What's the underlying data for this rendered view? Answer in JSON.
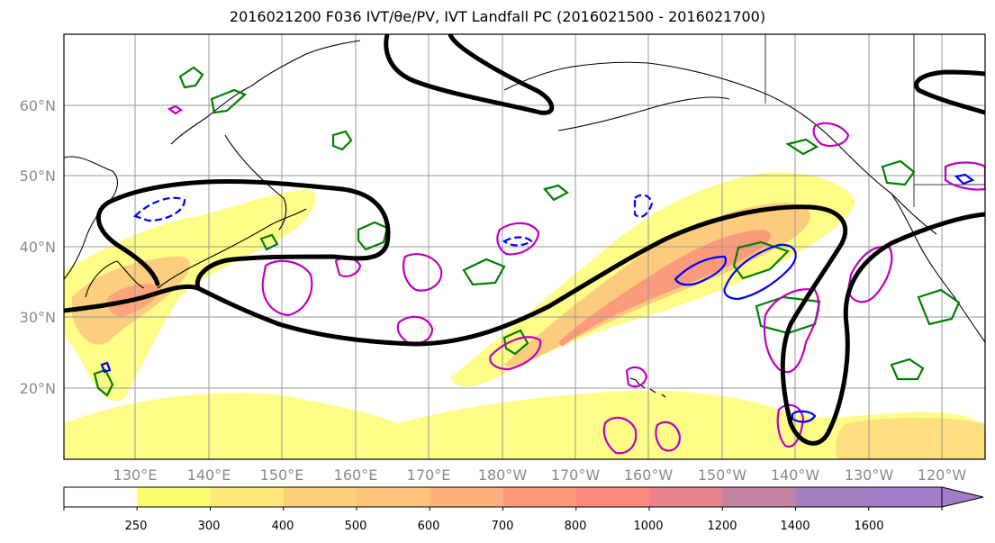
{
  "title": "2016021200 F036 IVT/θe/PV, IVT Landfall PC (2016021500 - 2016021700)",
  "map": {
    "lat_labels": [
      "60°N",
      "50°N",
      "40°N",
      "30°N",
      "20°N"
    ],
    "lon_labels": [
      "130°E",
      "140°E",
      "150°E",
      "160°E",
      "170°E",
      "180°W",
      "170°W",
      "160°W",
      "150°W",
      "140°W",
      "130°W",
      "120°W"
    ],
    "colors": {
      "pv_contour": "#000000",
      "theta_e_green": "#008000",
      "positive_magenta": "#c000c0",
      "negative_blue": "#0000ff",
      "coastline": "#000000",
      "grid": "#999999"
    }
  },
  "colorbar": {
    "levels": [
      "250",
      "300",
      "400",
      "500",
      "600",
      "700",
      "800",
      "1000",
      "1200",
      "1400",
      "1600"
    ],
    "colors": [
      "#ffffff",
      "#fdfd72",
      "#fde87a",
      "#fdd07c",
      "#fdc27c",
      "#fdb07c",
      "#fd9a7c",
      "#fb8a7c",
      "#e8828c",
      "#c583a4",
      "#a280c0",
      "#a27cc8"
    ],
    "extend": "max"
  }
}
